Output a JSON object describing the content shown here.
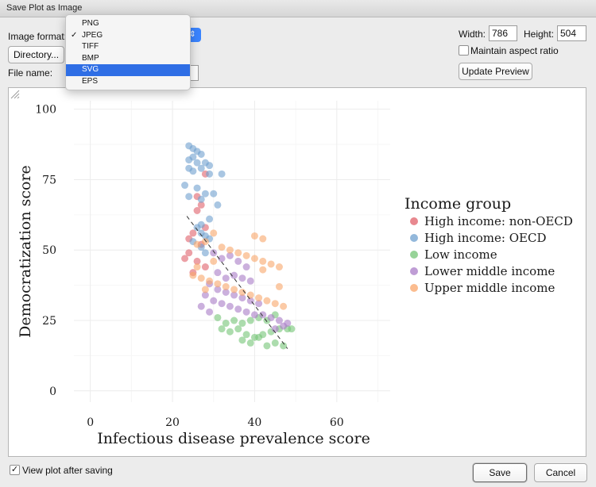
{
  "window": {
    "title": "Save Plot as Image"
  },
  "form": {
    "image_format_label": "Image format:",
    "directory_button": "Directory...",
    "file_name_label": "File name:",
    "file_name_value": "",
    "width_label": "Width:",
    "width_value": "786",
    "height_label": "Height:",
    "height_value": "504",
    "maintain_aspect_label": "Maintain aspect ratio",
    "update_preview_button": "Update Preview",
    "view_after_saving_label": "View plot after saving",
    "save_button": "Save",
    "cancel_button": "Cancel"
  },
  "format_menu": {
    "items": [
      "PNG",
      "JPEG",
      "TIFF",
      "BMP",
      "SVG",
      "EPS"
    ],
    "checked": "JPEG",
    "highlighted": "SVG",
    "check_mark": "✓"
  },
  "checkbox_marks": {
    "view_after_saving": "✓"
  },
  "chart_data": {
    "type": "scatter",
    "xlabel": "Infectious disease prevalence score",
    "ylabel": "Democratization score",
    "xlim": [
      -4,
      73
    ],
    "ylim": [
      -4,
      103
    ],
    "x_ticks": [
      0,
      20,
      40,
      60
    ],
    "y_ticks": [
      0,
      25,
      50,
      75,
      100
    ],
    "grid": true,
    "legend_title": "Income group",
    "legend_position": "right",
    "trend_line": {
      "style": "dashed",
      "from": [
        23.5,
        62
      ],
      "to": [
        48,
        15
      ]
    },
    "series": [
      {
        "name": "High income: non-OECD",
        "color": "#e0606a",
        "points": [
          [
            28,
            77
          ],
          [
            26,
            69
          ],
          [
            27,
            66
          ],
          [
            26,
            64
          ],
          [
            28,
            58
          ],
          [
            25,
            56
          ],
          [
            24,
            54
          ],
          [
            27,
            52
          ],
          [
            24,
            49
          ],
          [
            23,
            47
          ],
          [
            26,
            46
          ],
          [
            28,
            44
          ],
          [
            25,
            42
          ]
        ]
      },
      {
        "name": "High income: OECD",
        "color": "#6fa0cf",
        "points": [
          [
            24,
            87
          ],
          [
            25,
            86
          ],
          [
            26,
            85
          ],
          [
            25,
            83
          ],
          [
            27,
            84
          ],
          [
            24,
            82
          ],
          [
            26,
            81
          ],
          [
            28,
            81
          ],
          [
            29,
            80
          ],
          [
            24,
            79
          ],
          [
            25,
            78
          ],
          [
            27,
            79
          ],
          [
            29,
            77
          ],
          [
            32,
            77
          ],
          [
            23,
            73
          ],
          [
            26,
            72
          ],
          [
            28,
            70
          ],
          [
            30,
            70
          ],
          [
            24,
            69
          ],
          [
            27,
            68
          ],
          [
            31,
            66
          ],
          [
            29,
            61
          ],
          [
            27,
            59
          ],
          [
            26,
            58
          ],
          [
            27,
            56
          ],
          [
            28,
            55
          ],
          [
            29,
            54
          ],
          [
            25,
            53
          ],
          [
            27,
            51
          ],
          [
            28,
            49
          ]
        ]
      },
      {
        "name": "Low income",
        "color": "#74c476",
        "points": [
          [
            31,
            26
          ],
          [
            33,
            24
          ],
          [
            35,
            25
          ],
          [
            37,
            24
          ],
          [
            39,
            25
          ],
          [
            41,
            26
          ],
          [
            43,
            25
          ],
          [
            45,
            27
          ],
          [
            32,
            22
          ],
          [
            34,
            21
          ],
          [
            36,
            22
          ],
          [
            38,
            20
          ],
          [
            40,
            19
          ],
          [
            42,
            20
          ],
          [
            44,
            21
          ],
          [
            46,
            22
          ],
          [
            48,
            22
          ],
          [
            37,
            18
          ],
          [
            39,
            17
          ],
          [
            41,
            19
          ],
          [
            43,
            16
          ],
          [
            45,
            17
          ],
          [
            47,
            16
          ],
          [
            49,
            22
          ]
        ]
      },
      {
        "name": "Lower middle income",
        "color": "#a97cc7",
        "points": [
          [
            30,
            49
          ],
          [
            32,
            47
          ],
          [
            34,
            48
          ],
          [
            36,
            46
          ],
          [
            38,
            44
          ],
          [
            31,
            42
          ],
          [
            33,
            40
          ],
          [
            35,
            41
          ],
          [
            37,
            40
          ],
          [
            39,
            39
          ],
          [
            29,
            38
          ],
          [
            31,
            36
          ],
          [
            33,
            35
          ],
          [
            35,
            34
          ],
          [
            37,
            33
          ],
          [
            39,
            32
          ],
          [
            41,
            31
          ],
          [
            28,
            34
          ],
          [
            30,
            32
          ],
          [
            32,
            31
          ],
          [
            34,
            30
          ],
          [
            36,
            29
          ],
          [
            38,
            28
          ],
          [
            40,
            27
          ],
          [
            42,
            27
          ],
          [
            44,
            26
          ],
          [
            46,
            25
          ],
          [
            48,
            24
          ],
          [
            27,
            30
          ],
          [
            29,
            28
          ],
          [
            45,
            22
          ],
          [
            47,
            23
          ]
        ]
      },
      {
        "name": "Upper middle income",
        "color": "#f9a66a",
        "points": [
          [
            30,
            56
          ],
          [
            28,
            53
          ],
          [
            26,
            52
          ],
          [
            32,
            51
          ],
          [
            34,
            50
          ],
          [
            36,
            49
          ],
          [
            38,
            48
          ],
          [
            40,
            47
          ],
          [
            42,
            46
          ],
          [
            44,
            45
          ],
          [
            46,
            44
          ],
          [
            40,
            55
          ],
          [
            42,
            54
          ],
          [
            25,
            41
          ],
          [
            27,
            40
          ],
          [
            29,
            39
          ],
          [
            31,
            38
          ],
          [
            33,
            37
          ],
          [
            35,
            36
          ],
          [
            37,
            35
          ],
          [
            39,
            34
          ],
          [
            41,
            33
          ],
          [
            43,
            32
          ],
          [
            45,
            31
          ],
          [
            47,
            30
          ],
          [
            28,
            36
          ],
          [
            46,
            37
          ],
          [
            42,
            43
          ],
          [
            30,
            46
          ],
          [
            26,
            44
          ]
        ]
      }
    ]
  }
}
